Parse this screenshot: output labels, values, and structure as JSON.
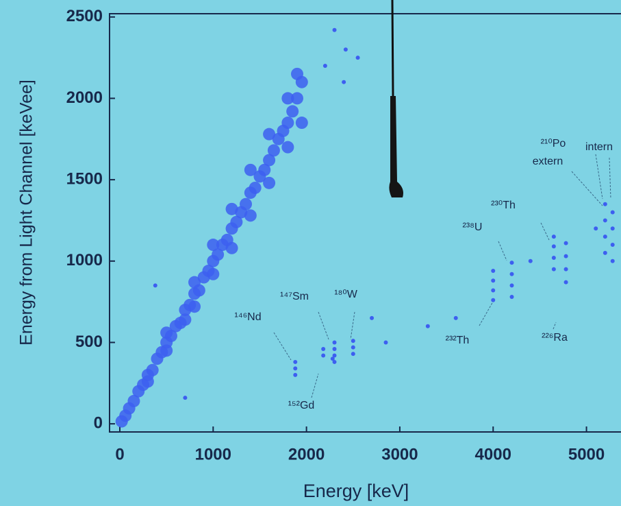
{
  "chart_data": {
    "type": "scatter",
    "xlabel": "Energy [keV]",
    "ylabel": "Energy from Light Channel [keVee]",
    "x": [
      20,
      60,
      100,
      150,
      200,
      250,
      300,
      350,
      400,
      450,
      500,
      550,
      600,
      650,
      700,
      750,
      800,
      850,
      900,
      950,
      1000,
      1050,
      1100,
      1150,
      1200,
      1250,
      1300,
      1350,
      1400,
      1450,
      1500,
      1550,
      1600,
      1650,
      1700,
      1750,
      1800,
      1850,
      1900,
      1950,
      500,
      500,
      800,
      800,
      1000,
      1000,
      1200,
      1200,
      1400,
      1400,
      1600,
      1600,
      1800,
      1800,
      1900,
      1950,
      300,
      700,
      1880,
      1880,
      1880,
      2180,
      2180,
      2300,
      2300,
      2300,
      2300,
      2280,
      2500,
      2500,
      2500,
      4000,
      4000,
      4000,
      4000,
      4200,
      4200,
      4200,
      4200,
      4650,
      4650,
      4650,
      4650,
      4780,
      4780,
      4780,
      4780,
      5200,
      5200,
      5200,
      5200,
      5280,
      5280,
      5280,
      5280,
      2300,
      2420,
      2550,
      2200,
      2400,
      380,
      700,
      2850,
      3300,
      3600,
      2700,
      4400,
      5100
    ],
    "values": [
      15,
      50,
      95,
      140,
      200,
      240,
      300,
      330,
      400,
      440,
      500,
      540,
      600,
      620,
      700,
      730,
      800,
      820,
      900,
      940,
      1000,
      1040,
      1100,
      1130,
      1200,
      1240,
      1300,
      1350,
      1420,
      1450,
      1520,
      1560,
      1620,
      1680,
      1750,
      1800,
      1850,
      1920,
      2000,
      2100,
      560,
      450,
      870,
      720,
      1100,
      920,
      1320,
      1080,
      1560,
      1280,
      1780,
      1480,
      2000,
      1700,
      2150,
      1850,
      260,
      640,
      300,
      340,
      380,
      420,
      460,
      380,
      420,
      460,
      500,
      400,
      430,
      470,
      510,
      760,
      820,
      880,
      940,
      780,
      850,
      920,
      990,
      950,
      1020,
      1090,
      1150,
      870,
      950,
      1030,
      1110,
      1050,
      1150,
      1250,
      1350,
      1000,
      1100,
      1200,
      1300,
      2420,
      2300,
      2250,
      2200,
      2100,
      850,
      160,
      500,
      600,
      650,
      650,
      1000,
      1200
    ],
    "color": "#3d5ff0",
    "xlim": [
      -110,
      5370
    ],
    "ylim": [
      -50,
      2520
    ],
    "xticks": [
      0,
      1000,
      2000,
      3000,
      4000,
      5000
    ],
    "yticks": [
      0,
      500,
      1000,
      1500,
      2000,
      2500
    ],
    "annotations": [
      "¹⁴⁶Nd",
      "¹⁴⁷Sm",
      "¹⁸⁰W",
      "¹⁵²Gd",
      "²³²Th",
      "²³⁸U",
      "²³⁰Th",
      "²²⁶Ra",
      "²¹⁰Po",
      "extern",
      "intern"
    ]
  }
}
